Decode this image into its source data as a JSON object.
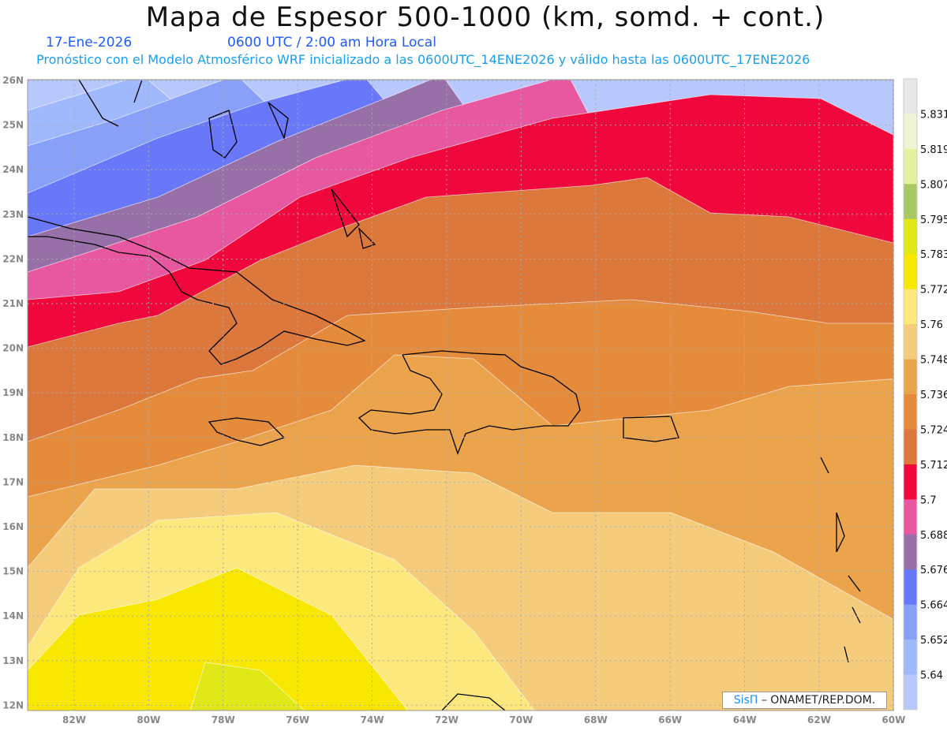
{
  "header": {
    "title": "Mapa de Espesor 500-1000 (km, somd. + cont.)",
    "date": "17-Ene-2026",
    "time": "0600 UTC / 2:00 am Hora Local",
    "forecast": "Pronóstico con el Modelo Atmosférico WRF inicializado a las 0600UTC_14ENE2026 y válido hasta las  0600UTC_17ENE2026"
  },
  "map": {
    "lon_labels": [
      "82W",
      "80W",
      "78W",
      "76W",
      "74W",
      "72W",
      "70W",
      "68W",
      "66W",
      "64W",
      "62W",
      "60W"
    ],
    "lat_labels": [
      "26N",
      "25N",
      "24N",
      "23N",
      "22N",
      "21N",
      "20N",
      "19N",
      "18N",
      "17N",
      "16N",
      "15N",
      "14N",
      "13N",
      "12N"
    ]
  },
  "colorbar": {
    "labels": [
      "5.831",
      "5.819",
      "5.807",
      "5.795",
      "5.783",
      "5.772",
      "5.76",
      "5.748",
      "5.736",
      "5.724",
      "5.712",
      "5.7",
      "5.688",
      "5.676",
      "5.664",
      "5.652",
      "5.64"
    ],
    "colors": [
      "#e8e8e8",
      "#eef4d4",
      "#e4f2a0",
      "#a8c864",
      "#e0e818",
      "#f8e800",
      "#fce87c",
      "#f4cc7c",
      "#eca44c",
      "#e48c3c",
      "#dc783c",
      "#f0083c",
      "#e858a0",
      "#9870a8",
      "#6878f8",
      "#88a0f8",
      "#a0b8fc",
      "#b8c8fc"
    ]
  },
  "credit": {
    "brand": "SisΠ",
    "text": " – ONAMET/REP.DOM."
  }
}
